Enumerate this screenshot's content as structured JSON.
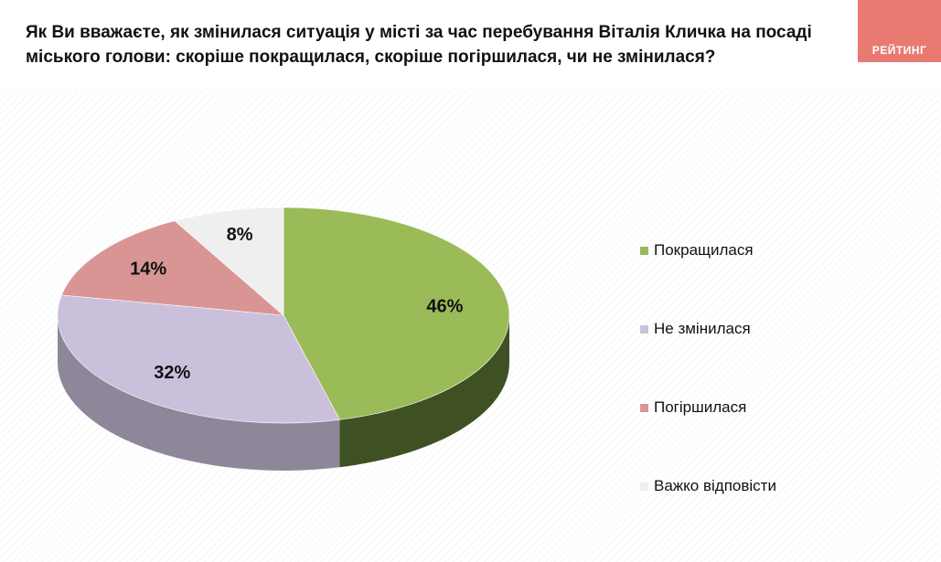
{
  "title": "Як Ви вважаєте, як змінилася ситуація у місті за час перебування Віталія Кличка на посаді міського голови: скоріше покращилася, скоріше погіршилася, чи не змінилася?",
  "brand": "РЕЙТИНГ",
  "chart_data": {
    "type": "pie",
    "title": "Як Ви вважаєте, як змінилася ситуація у місті за час перебування Віталія Кличка на посаді міського голови: скоріше покращилася, скоріше погіршилася, чи не змінилася?",
    "legend_position": "right",
    "slices": [
      {
        "label": "Покращилася",
        "value": 46,
        "display": "46%",
        "color": "#9bbb59",
        "side": "#3f5022"
      },
      {
        "label": "Не змінилася",
        "value": 32,
        "display": "32%",
        "color": "#cbc0dc",
        "side": "#8e8799"
      },
      {
        "label": "Погіршилася",
        "value": 14,
        "display": "14%",
        "color": "#d99594",
        "side": "#8d5f5e"
      },
      {
        "label": "Важко відповісти",
        "value": 8,
        "display": "8%",
        "color": "#efefef",
        "side": "#b5b5b5"
      }
    ]
  }
}
